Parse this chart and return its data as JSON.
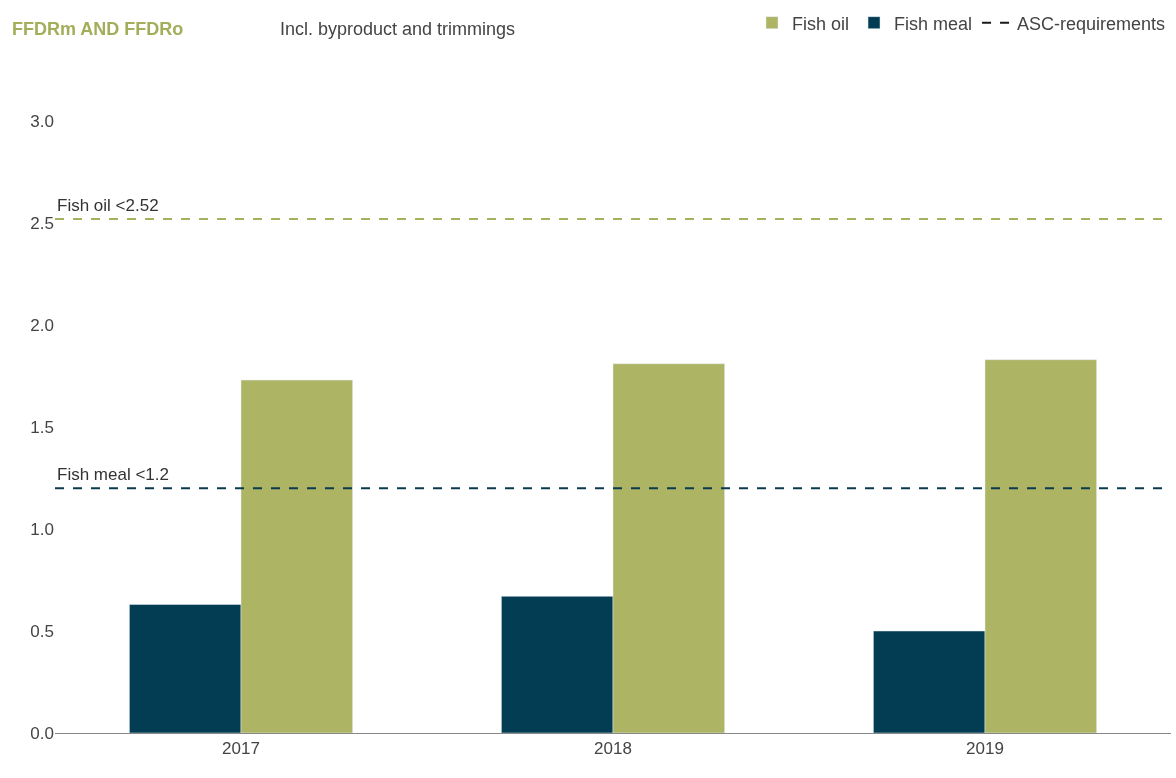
{
  "chart_data": {
    "type": "bar",
    "title": "FFDRm AND FFDRo",
    "subtitle": "Incl. byproduct and trimmings",
    "categories": [
      "2017",
      "2018",
      "2019"
    ],
    "series": [
      {
        "name": "Fish meal",
        "color": "#033d53",
        "values": [
          0.63,
          0.67,
          0.5
        ]
      },
      {
        "name": "Fish oil",
        "color": "#adb464",
        "values": [
          1.73,
          1.81,
          1.83
        ]
      }
    ],
    "ylim": [
      0,
      3.0
    ],
    "yticks": [
      {
        "value": 0,
        "label": "0.0"
      },
      0.5,
      {
        "value": 1,
        "label": "1.0"
      },
      1.5,
      {
        "value": 2,
        "label": "2.0"
      },
      2.5,
      {
        "value": 3,
        "label": "3.0"
      }
    ],
    "ref_lines": [
      {
        "axis": "y",
        "value": 2.52,
        "label": "Fish oil <2.52",
        "color": "#a3b35d",
        "line_style": "dashed"
      },
      {
        "axis": "y",
        "value": 1.2,
        "label": "Fish meal <1.2",
        "color": "#0b3a4f",
        "line_style": "dashed"
      }
    ],
    "annotations": [
      "ASC-requirements"
    ],
    "legend": "top right"
  }
}
